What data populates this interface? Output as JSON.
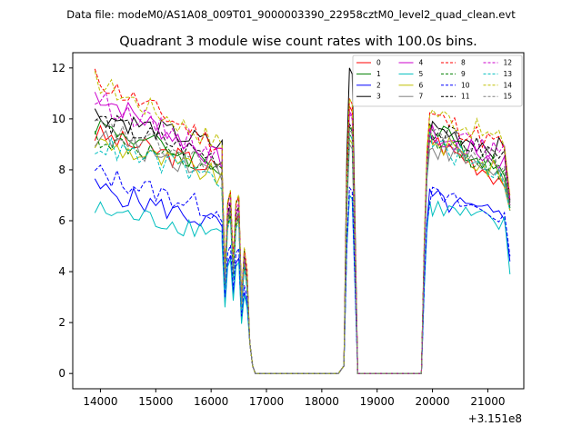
{
  "chart_data": {
    "type": "line",
    "suptitle": "Data file: modeM0/AS1A08_009T01_9000003390_22958cztM0_level2_quad_clean.evt",
    "title": "Quadrant 3 module wise count rates with 100.0s bins.",
    "xlabel": "",
    "ylabel": "",
    "x_offset_label": "+3.151e8",
    "xlim": [
      13500,
      21650
    ],
    "ylim": [
      -0.6,
      12.6
    ],
    "xticks": [
      14000,
      15000,
      16000,
      17000,
      18000,
      19000,
      20000,
      21000
    ],
    "yticks": [
      0,
      2,
      4,
      6,
      8,
      10,
      12
    ],
    "legend": {
      "position": "top-right",
      "columns": 4
    },
    "shape": {
      "segments": [
        {
          "x": [
            13900,
            14000,
            14100,
            14200,
            14300,
            14400,
            14500,
            14600,
            14700,
            14800,
            14900,
            15000,
            15100,
            15200,
            15300,
            15400,
            15500,
            15600,
            15700,
            15800,
            15900,
            16000,
            16100,
            16200
          ]
        },
        {
          "x": [
            16200,
            16250,
            16300,
            16350,
            16400,
            16450,
            16500,
            16550,
            16600,
            16650,
            16700,
            16750,
            16800,
            16850
          ]
        },
        {
          "x": [
            16850,
            17000,
            17500,
            18000,
            18300,
            18400,
            18450,
            18500,
            18550,
            18600,
            18650,
            18700
          ]
        },
        {
          "x": [
            18700,
            19000,
            19500,
            19800,
            19850,
            19900,
            19950,
            20000,
            20100,
            20200,
            20300,
            20400,
            20500,
            20600,
            20700,
            20800,
            20900,
            21000,
            21100,
            21200,
            21300,
            21400
          ]
        }
      ]
    },
    "series": [
      {
        "name": "0",
        "color": "#ff0000",
        "dash": false,
        "levels": {
          "start": 9.4,
          "end": 8.0,
          "trough": 3.6,
          "peak": 10.5,
          "rise": 9.3,
          "late": 7.5,
          "tail": 6.4
        }
      },
      {
        "name": "1",
        "color": "#008000",
        "dash": false,
        "levels": {
          "start": 9.8,
          "end": 8.1,
          "trough": 3.4,
          "peak": 9.7,
          "rise": 9.7,
          "late": 7.8,
          "tail": 6.6
        }
      },
      {
        "name": "2",
        "color": "#0000ff",
        "dash": false,
        "levels": {
          "start": 7.3,
          "end": 5.8,
          "trough": 2.8,
          "peak": 7.0,
          "rise": 6.9,
          "late": 6.0,
          "tail": 4.4
        }
      },
      {
        "name": "3",
        "color": "#000000",
        "dash": false,
        "levels": {
          "start": 10.2,
          "end": 8.9,
          "trough": 3.9,
          "peak": 12.0,
          "rise": 9.7,
          "late": 8.7,
          "tail": 6.8
        }
      },
      {
        "name": "4",
        "color": "#cc00cc",
        "dash": false,
        "levels": {
          "start": 11.0,
          "end": 8.3,
          "trough": 3.8,
          "peak": 10.3,
          "rise": 9.4,
          "late": 8.2,
          "tail": 6.6
        }
      },
      {
        "name": "5",
        "color": "#00bfbf",
        "dash": false,
        "levels": {
          "start": 6.4,
          "end": 5.6,
          "trough": 2.6,
          "peak": 7.0,
          "rise": 6.6,
          "late": 5.7,
          "tail": 3.9
        }
      },
      {
        "name": "6",
        "color": "#bfbf00",
        "dash": false,
        "levels": {
          "start": 9.1,
          "end": 7.7,
          "trough": 3.5,
          "peak": 9.2,
          "rise": 9.3,
          "late": 7.6,
          "tail": 6.4
        }
      },
      {
        "name": "7",
        "color": "#808080",
        "dash": false,
        "levels": {
          "start": 9.3,
          "end": 7.9,
          "trough": 3.4,
          "peak": 9.0,
          "rise": 9.0,
          "late": 7.7,
          "tail": 6.5
        }
      },
      {
        "name": "8",
        "color": "#ff0000",
        "dash": true,
        "levels": {
          "start": 11.6,
          "end": 8.9,
          "trough": 4.1,
          "peak": 10.8,
          "rise": 10.2,
          "late": 8.8,
          "tail": 6.9
        }
      },
      {
        "name": "9",
        "color": "#008000",
        "dash": true,
        "levels": {
          "start": 9.3,
          "end": 7.8,
          "trough": 3.5,
          "peak": 9.4,
          "rise": 9.2,
          "late": 7.9,
          "tail": 6.5
        }
      },
      {
        "name": "10",
        "color": "#0000ff",
        "dash": true,
        "levels": {
          "start": 7.9,
          "end": 6.3,
          "trough": 3.0,
          "peak": 7.3,
          "rise": 7.0,
          "late": 6.1,
          "tail": 4.6
        }
      },
      {
        "name": "11",
        "color": "#000000",
        "dash": true,
        "levels": {
          "start": 10.0,
          "end": 8.4,
          "trough": 3.7,
          "peak": 9.8,
          "rise": 9.6,
          "late": 8.4,
          "tail": 6.7
        }
      },
      {
        "name": "12",
        "color": "#cc00cc",
        "dash": true,
        "levels": {
          "start": 10.8,
          "end": 8.6,
          "trough": 3.8,
          "peak": 10.2,
          "rise": 9.5,
          "late": 8.5,
          "tail": 6.8
        }
      },
      {
        "name": "13",
        "color": "#00bfbf",
        "dash": true,
        "levels": {
          "start": 9.0,
          "end": 7.6,
          "trough": 3.3,
          "peak": 9.4,
          "rise": 9.1,
          "late": 7.6,
          "tail": 6.4
        }
      },
      {
        "name": "14",
        "color": "#bfbf00",
        "dash": true,
        "levels": {
          "start": 11.5,
          "end": 9.0,
          "trough": 4.0,
          "peak": 10.8,
          "rise": 10.4,
          "late": 9.0,
          "tail": 7.0
        }
      },
      {
        "name": "15",
        "color": "#808080",
        "dash": true,
        "levels": {
          "start": 9.7,
          "end": 8.1,
          "trough": 3.6,
          "peak": 9.6,
          "rise": 9.4,
          "late": 8.1,
          "tail": 6.6
        }
      }
    ]
  }
}
